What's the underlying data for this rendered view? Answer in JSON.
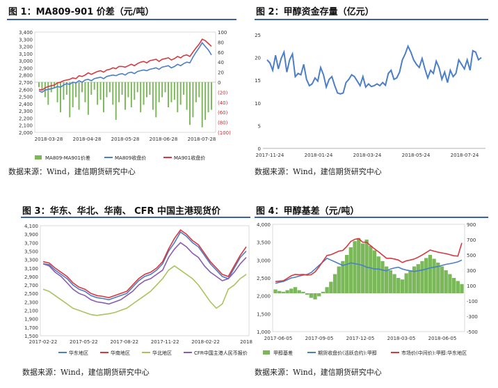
{
  "colors": {
    "accent": "#3a5fb0",
    "bar_green": "#7bb85a",
    "line_blue": "#4a7ec8",
    "line_red": "#d9363e",
    "line_purple": "#8a5bb3",
    "line_olive": "#a9c35c",
    "pos_blue": "#3b5fa8",
    "neg_red": "#c8292e"
  },
  "panels": [
    {
      "title": "图 1：MA809-901 价差（元/吨）",
      "source": "数据来源：Wind，建信期货研究中心"
    },
    {
      "title": "图 2：甲醇资金存量（亿元）",
      "source": "数据来源：Wind，建信期货研究中心"
    },
    {
      "title": "图 3：华东、华北、华南、 CFR 中国主港现货价",
      "source": "数据来源：Wind，建信期货研究中心"
    },
    {
      "title": "图 4：甲醇基差（元/吨）",
      "source": "数据来源：Wind，建信期货研究中心"
    }
  ],
  "chart_data": [
    {
      "type": "bar+line",
      "title": "MA809-901 价差（元/吨）",
      "left_ticks": [
        "3,400",
        "3,300",
        "3,200",
        "3,100",
        "3,000",
        "2,900",
        "2,800",
        "2,700",
        "2,600",
        "2,500",
        "2,400",
        "2,300",
        "2,200",
        "2,100",
        "2,000"
      ],
      "right_ticks": [
        "100",
        "80",
        "60",
        "40",
        "20",
        "0",
        "(20)",
        "(40)",
        "(60)",
        "(80)",
        "(100)"
      ],
      "x_ticks": [
        "2018-03-28",
        "2018-04-28",
        "2018-05-28",
        "2018-06-28",
        "2018-07-28"
      ],
      "ylim_left": [
        2000,
        3400
      ],
      "ylim_right": [
        -100,
        100
      ],
      "legend": [
        "MA809-MA901价差",
        "MA809收盘价",
        "MA901收盘价"
      ],
      "series": [
        {
          "name": "MA809-MA901价差",
          "axis": "right",
          "values": [
            -10,
            -15,
            -30,
            -45,
            -20,
            -12,
            -40,
            -60,
            -35,
            -25,
            -70,
            -50,
            -30,
            -55,
            -20,
            -40,
            -65,
            -25,
            -15,
            -45,
            -35,
            -60,
            -30,
            -20,
            -45,
            -75,
            -40,
            -25,
            -55,
            -30,
            -50,
            -35,
            -20,
            -60,
            -45,
            -30,
            -25,
            -55,
            -70,
            -40,
            -30,
            -20,
            -50,
            -40,
            -35,
            -60,
            -45,
            -25,
            -55,
            -85,
            -70,
            -40,
            -30,
            -90,
            -75,
            -60,
            -55
          ]
        },
        {
          "name": "MA809收盘价",
          "axis": "left",
          "values": [
            2580,
            2560,
            2590,
            2600,
            2610,
            2620,
            2640,
            2630,
            2660,
            2680,
            2670,
            2700,
            2690,
            2720,
            2700,
            2730,
            2740,
            2720,
            2750,
            2760,
            2770,
            2750,
            2780,
            2790,
            2800,
            2790,
            2810,
            2820,
            2800,
            2830,
            2840,
            2820,
            2850,
            2860,
            2870,
            2860,
            2880,
            2890,
            2900,
            2880,
            2910,
            2920,
            2930,
            2900,
            2920,
            2950,
            2930,
            2960,
            2980,
            2970,
            3050,
            3120,
            3180,
            3250,
            3200,
            3150,
            3080
          ]
        },
        {
          "name": "MA901收盘价",
          "axis": "left",
          "values": [
            2600,
            2590,
            2620,
            2640,
            2650,
            2660,
            2690,
            2700,
            2720,
            2730,
            2740,
            2760,
            2750,
            2790,
            2780,
            2800,
            2830,
            2810,
            2830,
            2850,
            2860,
            2840,
            2870,
            2880,
            2900,
            2890,
            2920,
            2920,
            2910,
            2930,
            2950,
            2930,
            2960,
            2980,
            2990,
            2970,
            3000,
            3010,
            3020,
            2990,
            3020,
            3030,
            3040,
            3010,
            3030,
            3060,
            3040,
            3070,
            3080,
            3060,
            3120,
            3180,
            3230,
            3300,
            3280,
            3240,
            3200
          ]
        }
      ]
    },
    {
      "type": "line",
      "title": "甲醇资金存量（亿元）",
      "y_ticks": [
        "25",
        "20",
        "15",
        "10",
        "5",
        "0"
      ],
      "x_ticks": [
        "2017-11-24",
        "2018-01-24",
        "2018-03-24",
        "2018-05-24",
        "2018-07-24"
      ],
      "ylim": [
        0,
        25
      ],
      "series": [
        {
          "name": "甲醇资金存量",
          "values": [
            19.5,
            18.8,
            17.2,
            20.5,
            17.5,
            19.8,
            21.2,
            16.8,
            19.5,
            20.8,
            15.8,
            16.5,
            16.2,
            18.5,
            15.2,
            13.8,
            14.2,
            15.5,
            14.8,
            17.8,
            16.2,
            13.5,
            15.2,
            15.8,
            13.8,
            12.2,
            12.0,
            12.2,
            14.5,
            15.2,
            16.2,
            15.8,
            14.8,
            13.8,
            15.8,
            13.5,
            14.2,
            13.6,
            13.8,
            14.2,
            13.8,
            14.5,
            13.9,
            16.5,
            17.2,
            15.2,
            15.5,
            16.8,
            19.5,
            20.8,
            22.5,
            21.2,
            19.5,
            18.5,
            17.8,
            19.8,
            17.5,
            15.5,
            17.2,
            16.5,
            19.2,
            17.8,
            15.2,
            16.8,
            14.5,
            17.2,
            15.8,
            16.5,
            19.5,
            18.5,
            17.5,
            19.5,
            17.2,
            21.5,
            21.2,
            19.5,
            20.0
          ]
        }
      ]
    },
    {
      "type": "line",
      "title": "华东、华北、华南、CFR 中国主港现货价",
      "y_ticks": [
        "4,100",
        "3,900",
        "3,700",
        "3,500",
        "3,300",
        "3,100",
        "2,900",
        "2,700",
        "2,500",
        "2,300",
        "2,100",
        "1,900",
        "1,700",
        "1,500"
      ],
      "x_ticks": [
        "2017-02-22",
        "2017-05-22",
        "2017-08-22",
        "2017-11-22",
        "2018-02-22",
        "2018"
      ],
      "ylim": [
        1500,
        4100
      ],
      "legend": [
        "华东地区",
        "华南地区",
        "华北地区",
        "CFR中国主港人民币报价"
      ],
      "series": [
        {
          "name": "华东地区",
          "values": [
            3200,
            3180,
            3050,
            2950,
            2850,
            2700,
            2600,
            2550,
            2450,
            2400,
            2380,
            2350,
            2400,
            2450,
            2500,
            2650,
            2800,
            2900,
            2950,
            3050,
            3200,
            3500,
            3700,
            3950,
            3850,
            3700,
            3600,
            3400,
            3200,
            3050,
            2900,
            2850,
            3100,
            3350,
            3500
          ]
        },
        {
          "name": "华南地区",
          "values": [
            3250,
            3220,
            3100,
            3000,
            2900,
            2750,
            2650,
            2600,
            2500,
            2450,
            2430,
            2400,
            2450,
            2500,
            2550,
            2700,
            2850,
            2950,
            3000,
            3100,
            3250,
            3550,
            3800,
            4000,
            3900,
            3750,
            3650,
            3450,
            3250,
            3100,
            2950,
            2900,
            3150,
            3400,
            3600
          ]
        },
        {
          "name": "华北地区",
          "values": [
            2600,
            2550,
            2450,
            2350,
            2250,
            2150,
            2100,
            2050,
            2000,
            1980,
            2000,
            2020,
            2050,
            2100,
            2150,
            2250,
            2350,
            2450,
            2550,
            2700,
            2850,
            3050,
            3150,
            3050,
            2950,
            2850,
            2700,
            2500,
            2300,
            2150,
            2250,
            2600,
            2700,
            2850,
            2950
          ]
        },
        {
          "name": "CFR中国主港人民币报价",
          "values": [
            3200,
            3150,
            3000,
            2900,
            2750,
            2600,
            2500,
            2450,
            2350,
            2300,
            2280,
            2250,
            2300,
            2350,
            2450,
            2550,
            2700,
            2800,
            2850,
            2950,
            3050,
            3350,
            3550,
            3700,
            3600,
            3450,
            3350,
            3150,
            3000,
            2900,
            2800,
            2850,
            3000,
            3200,
            3350
          ]
        }
      ]
    },
    {
      "type": "bar+line",
      "title": "甲醇基差（元/吨）",
      "left_ticks": [
        "4,000",
        "3,500",
        "3,000",
        "2,500",
        "2,000",
        "1,500",
        "1,000"
      ],
      "right_ticks": [
        "900",
        "700",
        "500",
        "300",
        "100",
        "-100",
        "-300",
        "-500"
      ],
      "x_ticks": [
        "2017-06-05",
        "2017-09-05",
        "2017-12-05",
        "2018-03-05",
        "2018-06-05"
      ],
      "ylim_left": [
        1000,
        4000
      ],
      "ylim_right": [
        -500,
        900
      ],
      "legend": [
        "甲醇基差",
        "期货收盘价(活跃合约):甲醇",
        "市场价(中间价):甲醇:华东地区"
      ],
      "series": [
        {
          "name": "甲醇基差",
          "axis": "right",
          "values": [
            50,
            30,
            20,
            40,
            60,
            80,
            40,
            20,
            -20,
            -60,
            -80,
            -40,
            20,
            80,
            150,
            250,
            350,
            420,
            500,
            600,
            680,
            720,
            650,
            700,
            620,
            560,
            480,
            420,
            350,
            300,
            250,
            200,
            180,
            260,
            300,
            350,
            380,
            420,
            460,
            500,
            450,
            400,
            350,
            300,
            250,
            200,
            160,
            120
          ]
        },
        {
          "name": "期货收盘价(活跃合约):甲醇",
          "axis": "left",
          "values": [
            2350,
            2380,
            2400,
            2450,
            2500,
            2520,
            2550,
            2580,
            2600,
            2650,
            2750,
            2850,
            2950,
            3050,
            3000,
            2950,
            2900,
            2850,
            2880,
            2920,
            2900,
            2880,
            2850,
            2800,
            2780,
            2750,
            2750,
            2720,
            2700,
            2750,
            2780,
            2800,
            2750,
            2720,
            2700,
            2680,
            2700,
            2720,
            2750,
            2780,
            2800,
            2820,
            2850,
            2880,
            2900,
            2920,
            2950,
            3000
          ]
        },
        {
          "name": "市场价(中间价):甲醇:华东地区",
          "axis": "left",
          "values": [
            2400,
            2410,
            2420,
            2490,
            2560,
            2600,
            2590,
            2600,
            2580,
            2590,
            2670,
            2810,
            2970,
            3130,
            3150,
            3200,
            3250,
            3270,
            3380,
            3520,
            3580,
            3600,
            3500,
            3500,
            3400,
            3310,
            3230,
            3140,
            3050,
            3050,
            3030,
            3000,
            2930,
            2980,
            3000,
            3030,
            3080,
            3140,
            3210,
            3280,
            3250,
            3220,
            3200,
            3180,
            3150,
            3120,
            3110,
            3480
          ]
        }
      ]
    }
  ]
}
